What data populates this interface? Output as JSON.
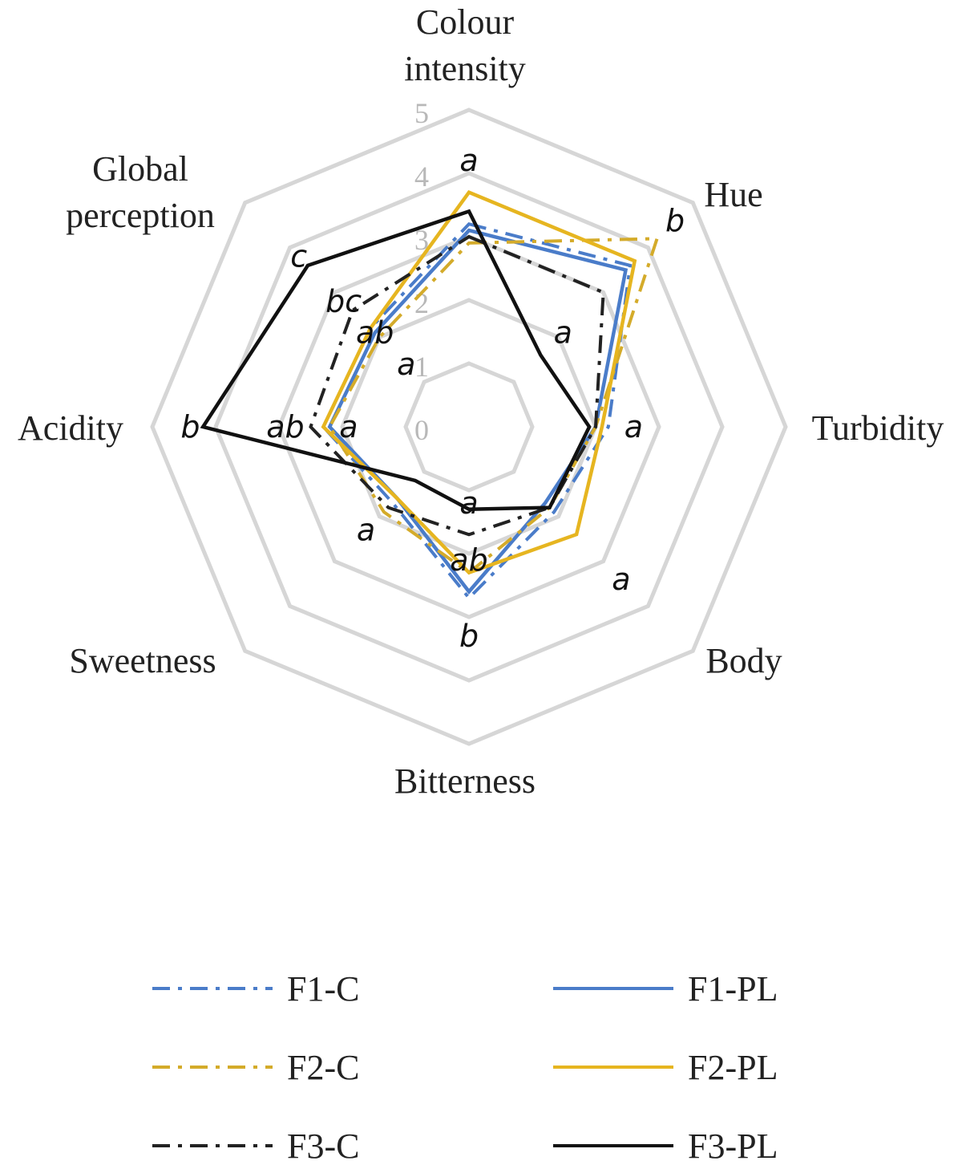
{
  "chart_data": {
    "type": "radar",
    "axes": [
      "Colour\nintensity",
      "Hue",
      "Turbidity",
      "Body",
      "Bitterness",
      "Sweetness",
      "Acidity",
      "Global\nperception"
    ],
    "rlim": [
      0,
      5
    ],
    "ticks": [
      "0",
      "1",
      "2",
      "3",
      "4",
      "5"
    ],
    "grid": true,
    "legend_position": "bottom",
    "series": [
      {
        "name": "F1-C",
        "color": "#4a7cc9",
        "dash": "dashdot",
        "values": [
          3.2,
          3.6,
          2.2,
          1.9,
          2.7,
          1.7,
          2.3,
          2.2
        ]
      },
      {
        "name": "F1-PL",
        "color": "#4a7cc9",
        "dash": "solid",
        "values": [
          3.1,
          3.5,
          2.0,
          1.7,
          2.6,
          1.6,
          2.2,
          2.1
        ]
      },
      {
        "name": "F2-C",
        "color": "#d4ab2a",
        "dash": "dashdot",
        "values": [
          2.9,
          4.2,
          2.0,
          1.8,
          2.3,
          1.9,
          2.2,
          2.0
        ]
      },
      {
        "name": "F2-PL",
        "color": "#e6b520",
        "dash": "solid",
        "values": [
          3.7,
          3.7,
          2.1,
          2.4,
          2.3,
          1.6,
          2.3,
          2.2
        ]
      },
      {
        "name": "F3-C",
        "color": "#222222",
        "dash": "dashdot",
        "values": [
          3.0,
          3.0,
          2.0,
          1.8,
          1.7,
          1.8,
          2.5,
          2.6
        ]
      },
      {
        "name": "F3-PL",
        "color": "#111111",
        "dash": "solid",
        "values": [
          3.4,
          1.6,
          1.9,
          1.8,
          1.3,
          1.2,
          4.2,
          3.6
        ]
      }
    ],
    "annotations": [
      {
        "text": "a",
        "axis": 0,
        "r": 4.2
      },
      {
        "text": "b",
        "axis": 1,
        "r": 4.6
      },
      {
        "text": "a",
        "axis": 1,
        "r": 2.1
      },
      {
        "text": "a",
        "axis": 2,
        "r": 2.6
      },
      {
        "text": "a",
        "axis": 3,
        "r": 3.4
      },
      {
        "text": "a",
        "axis": 4,
        "r": 1.2
      },
      {
        "text": "ab",
        "axis": 4,
        "r": 2.1
      },
      {
        "text": "b",
        "axis": 4,
        "r": 3.3
      },
      {
        "text": "a",
        "axis": 5,
        "r": 2.3
      },
      {
        "text": "b",
        "axis": 6,
        "r": 4.4
      },
      {
        "text": "ab",
        "axis": 6,
        "r": 2.9
      },
      {
        "text": "a",
        "axis": 6,
        "r": 1.9
      },
      {
        "text": "c",
        "axis": 7,
        "r": 3.8
      },
      {
        "text": "bc",
        "axis": 7,
        "r": 2.8
      },
      {
        "text": "ab",
        "axis": 7,
        "r": 2.1
      },
      {
        "text": "a",
        "axis": 7,
        "r": 1.4
      }
    ]
  }
}
